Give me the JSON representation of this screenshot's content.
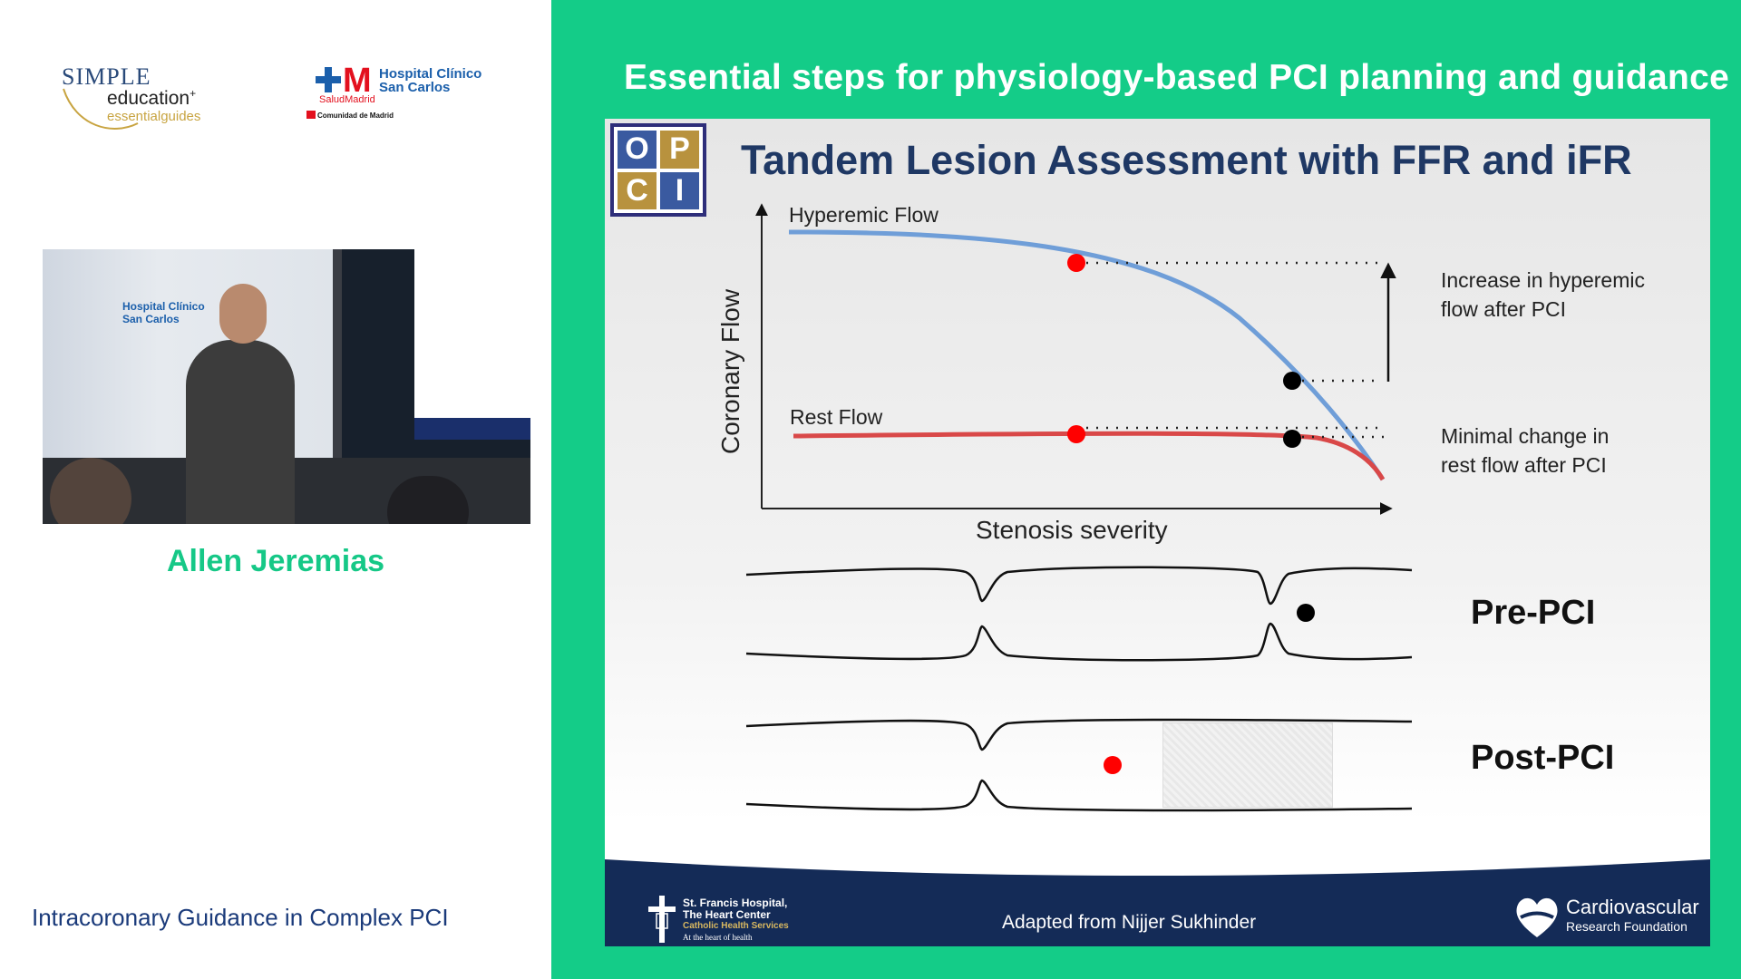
{
  "left": {
    "logo_simple": {
      "word1": "SIMPLE",
      "word2": "education",
      "word3": "essentialguides"
    },
    "logo_hospital": {
      "name": "Hospital Clínico San Carlos",
      "sub": "SaludMadrid",
      "region": "Comunidad de Madrid"
    },
    "speaker_name": "Allen Jeremias",
    "course_title": "Intracoronary Guidance in Complex PCI"
  },
  "header": {
    "title": "Essential steps for physiology-based PCI planning and guidance"
  },
  "slide": {
    "logo_letters": [
      "O",
      "P",
      "C",
      "I"
    ],
    "title": "Tandem Lesion Assessment with FFR and iFR",
    "y_axis_label": "Coronary Flow",
    "x_axis_label": "Stenosis severity",
    "hyperemic_label": "Hyperemic Flow",
    "rest_label": "Rest Flow",
    "note_hyperemic_1": "Increase in hyperemic",
    "note_hyperemic_2": "flow after PCI",
    "note_rest_1": "Minimal change in",
    "note_rest_2": "rest flow after PCI",
    "pre_label": "Pre-PCI",
    "post_label": "Post-PCI",
    "footer_credit": "Adapted from Nijjer Sukhinder",
    "colors": {
      "hyperemic_curve": "#6f9ed8",
      "rest_curve": "#d94848",
      "marker_red": "#ff0000",
      "marker_black": "#000000",
      "footer_band": "#142b57"
    }
  },
  "footer_logos": {
    "st_francis_1": "St. Francis Hospital,",
    "st_francis_2": "The Heart Center",
    "st_francis_3": "Catholic Health Services",
    "st_francis_4": "At the heart of health",
    "crf_1": "Cardiovascular",
    "crf_2": "Research Foundation"
  }
}
